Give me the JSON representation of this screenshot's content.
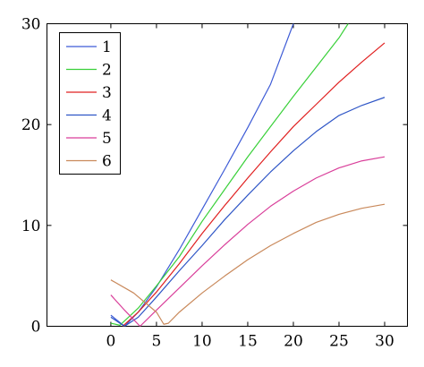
{
  "chart_data": {
    "type": "line",
    "title": "",
    "xlabel": "",
    "ylabel": "",
    "xlim": [
      -7,
      32.5
    ],
    "ylim": [
      0,
      30
    ],
    "xticks": [
      0,
      5,
      10,
      15,
      20,
      25,
      30
    ],
    "yticks": [
      0,
      10,
      20,
      30
    ],
    "grid": false,
    "legend_position": "top-left",
    "series": [
      {
        "name": "1",
        "color": "#3d5bd6",
        "points": [
          [
            0,
            1.1
          ],
          [
            1.5,
            0.0
          ],
          [
            3,
            1.4
          ],
          [
            5,
            3.9
          ],
          [
            7.5,
            7.6
          ],
          [
            10,
            11.6
          ],
          [
            12.5,
            15.6
          ],
          [
            15,
            19.7
          ],
          [
            17.5,
            24.0
          ],
          [
            20,
            30.0
          ]
        ]
      },
      {
        "name": "2",
        "color": "#39d039",
        "points": [
          [
            0,
            0.3
          ],
          [
            1,
            0.1
          ],
          [
            3,
            1.8
          ],
          [
            5,
            4.0
          ],
          [
            7.5,
            6.9
          ],
          [
            10,
            10.4
          ],
          [
            12.5,
            13.6
          ],
          [
            15,
            16.8
          ],
          [
            17.5,
            19.8
          ],
          [
            20,
            22.8
          ],
          [
            22.5,
            25.7
          ],
          [
            25,
            28.6
          ],
          [
            26,
            30.0
          ]
        ]
      },
      {
        "name": "3",
        "color": "#e02020",
        "points": [
          [
            1.3,
            0.0
          ],
          [
            3,
            1.4
          ],
          [
            5,
            3.4
          ],
          [
            7.5,
            6.2
          ],
          [
            10,
            9.2
          ],
          [
            12.5,
            12.0
          ],
          [
            15,
            14.7
          ],
          [
            17.5,
            17.3
          ],
          [
            20,
            19.8
          ],
          [
            22.5,
            22.0
          ],
          [
            25,
            24.2
          ],
          [
            27.5,
            26.2
          ],
          [
            30,
            28.1
          ]
        ]
      },
      {
        "name": "4",
        "color": "#2e55c6",
        "points": [
          [
            0,
            0.9
          ],
          [
            1.5,
            0.0
          ],
          [
            3,
            0.9
          ],
          [
            5,
            2.9
          ],
          [
            7.5,
            5.5
          ],
          [
            10,
            8.0
          ],
          [
            12.5,
            10.6
          ],
          [
            15,
            13.0
          ],
          [
            17.5,
            15.3
          ],
          [
            20,
            17.4
          ],
          [
            22.5,
            19.3
          ],
          [
            25,
            20.9
          ],
          [
            27.5,
            21.9
          ],
          [
            30,
            22.7
          ]
        ]
      },
      {
        "name": "5",
        "color": "#d93f9a",
        "points": [
          [
            0,
            3.1
          ],
          [
            1.5,
            1.6
          ],
          [
            3.2,
            0.0
          ],
          [
            5,
            1.6
          ],
          [
            7.5,
            3.8
          ],
          [
            10,
            6.0
          ],
          [
            12.5,
            8.1
          ],
          [
            15,
            10.1
          ],
          [
            17.5,
            11.9
          ],
          [
            20,
            13.4
          ],
          [
            22.5,
            14.7
          ],
          [
            25,
            15.7
          ],
          [
            27.5,
            16.4
          ],
          [
            30,
            16.8
          ]
        ]
      },
      {
        "name": "6",
        "color": "#c9895b",
        "points": [
          [
            0,
            4.6
          ],
          [
            2.5,
            3.3
          ],
          [
            5,
            1.4
          ],
          [
            5.8,
            0.2
          ],
          [
            6.3,
            0.3
          ],
          [
            7.5,
            1.4
          ],
          [
            10,
            3.3
          ],
          [
            12.5,
            5.0
          ],
          [
            15,
            6.6
          ],
          [
            17.5,
            8.0
          ],
          [
            20,
            9.2
          ],
          [
            22.5,
            10.3
          ],
          [
            25,
            11.1
          ],
          [
            27.5,
            11.7
          ],
          [
            30,
            12.1
          ]
        ]
      }
    ]
  }
}
